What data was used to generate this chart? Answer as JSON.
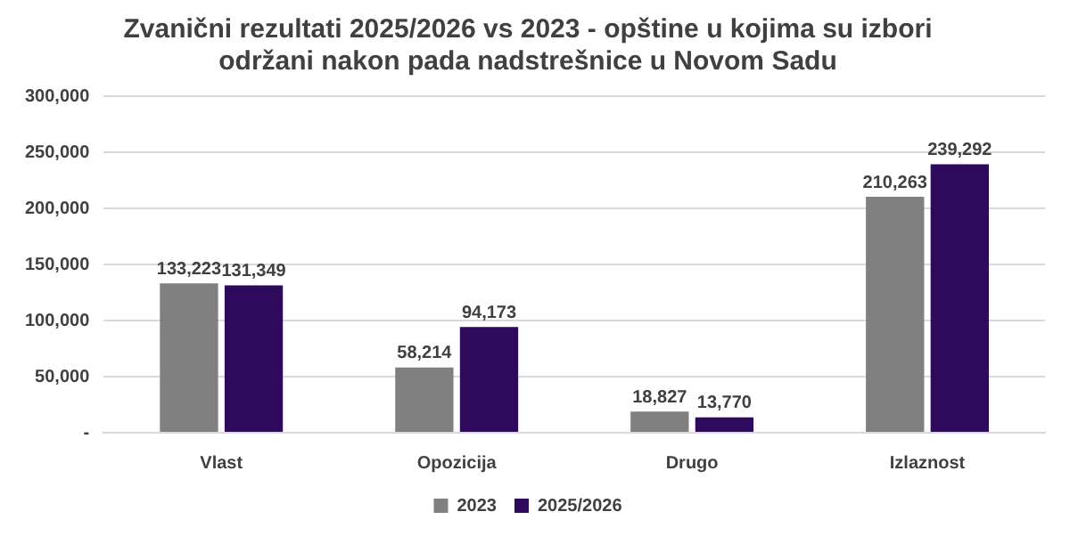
{
  "chart_data": {
    "type": "bar",
    "title": "Zvanični rezultati 2025/2026 vs 2023 - opštine u kojima su izbori održani nakon pada nadstrešnice u Novom Sadu",
    "categories": [
      "Vlast",
      "Opozicija",
      "Drugo",
      "Izlaznost"
    ],
    "series": [
      {
        "name": "2023",
        "color": "#808080",
        "values": [
          133223,
          58214,
          18827,
          210263
        ],
        "value_labels": [
          "133,223",
          "58,214",
          "18,827",
          "210,263"
        ]
      },
      {
        "name": "2025/2026",
        "color": "#2d0a5c",
        "values": [
          131349,
          94173,
          13770,
          239292
        ],
        "value_labels": [
          "131,349",
          "94,173",
          "13,770",
          "239,292"
        ]
      }
    ],
    "ylim": [
      0,
      300000
    ],
    "yticks": [
      {
        "value": 0,
        "label": "-"
      },
      {
        "value": 50000,
        "label": "50,000"
      },
      {
        "value": 100000,
        "label": "100,000"
      },
      {
        "value": 150000,
        "label": "150,000"
      },
      {
        "value": 200000,
        "label": "200,000"
      },
      {
        "value": 250000,
        "label": "250,000"
      },
      {
        "value": 300000,
        "label": "300,000"
      }
    ],
    "grid": "y",
    "legend": "bottom"
  }
}
